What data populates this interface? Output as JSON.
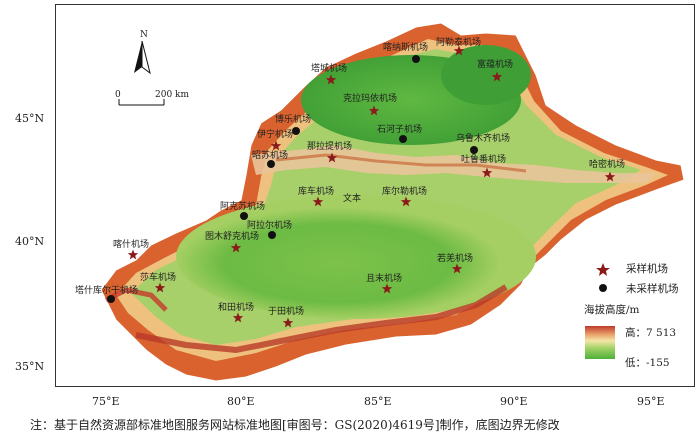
{
  "map": {
    "north_label": "N",
    "scale_start": "0",
    "scale_end": "200 km"
  },
  "axes": {
    "lat_labels": [
      "45°N",
      "40°N",
      "35°N"
    ],
    "lon_labels": [
      "75°E",
      "80°E",
      "85°E",
      "90°E",
      "95°E"
    ]
  },
  "airports_sampled": [
    {
      "name": "阿勒泰机场"
    },
    {
      "name": "富蕴机场"
    },
    {
      "name": "塔城机场"
    },
    {
      "name": "克拉玛依机场"
    },
    {
      "name": "伊宁机场"
    },
    {
      "name": "那拉提机场"
    },
    {
      "name": "吐鲁番机场"
    },
    {
      "name": "哈密机场"
    },
    {
      "name": "库车机场"
    },
    {
      "name": "库尔勒机场"
    },
    {
      "name": "图木舒克机场"
    },
    {
      "name": "喀什机场"
    },
    {
      "name": "莎车机场"
    },
    {
      "name": "和田机场"
    },
    {
      "name": "于田机场"
    },
    {
      "name": "且末机场"
    },
    {
      "name": "若羌机场"
    }
  ],
  "airports_unsampled": [
    {
      "name": "喀纳斯机场"
    },
    {
      "name": "博乐机场"
    },
    {
      "name": "石河子机场"
    },
    {
      "name": "乌鲁木齐机场"
    },
    {
      "name": "昭苏机场"
    },
    {
      "name": "阿克苏机场"
    },
    {
      "name": "阿拉尔机场"
    },
    {
      "name": "塔什库尔干机场"
    }
  ],
  "extra_label": "文本",
  "legend": {
    "sampled": "采样机场",
    "unsampled": "未采样机场",
    "elevation_title": "海拔高度/m",
    "high": "高：7 513",
    "low": "低：-155"
  },
  "colors": {
    "sampled_marker": "#8b1a1a",
    "unsampled_marker": "#111111",
    "lowland": "#5cb83c",
    "highland": "#c0392b"
  },
  "note": "注：基于自然资源部标准地图服务网站标准地图[审图号：GS(2020)4619号]制作，底图边界无修改"
}
